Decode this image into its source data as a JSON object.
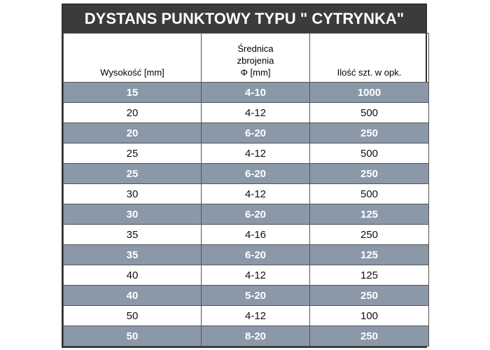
{
  "title": "DYSTANS PUNKTOWY TYPU \" CYTRYNKA\"",
  "table": {
    "header": [
      [
        "Wysokość [mm]"
      ],
      [
        "Średnica",
        "zbrojenia",
        "Φ [mm]"
      ],
      [
        "Ilość szt. w opk."
      ]
    ],
    "rows": [
      [
        15,
        "4-10",
        1000
      ],
      [
        20,
        "4-12",
        500
      ],
      [
        20,
        "6-20",
        250
      ],
      [
        25,
        "4-12",
        500
      ],
      [
        25,
        "6-20",
        250
      ],
      [
        30,
        "4-12",
        500
      ],
      [
        30,
        "6-20",
        125
      ],
      [
        35,
        "4-16",
        250
      ],
      [
        35,
        "6-20",
        125
      ],
      [
        40,
        "4-12",
        125
      ],
      [
        40,
        "5-20",
        250
      ],
      [
        50,
        "4-12",
        100
      ],
      [
        50,
        "8-20",
        250
      ]
    ]
  }
}
